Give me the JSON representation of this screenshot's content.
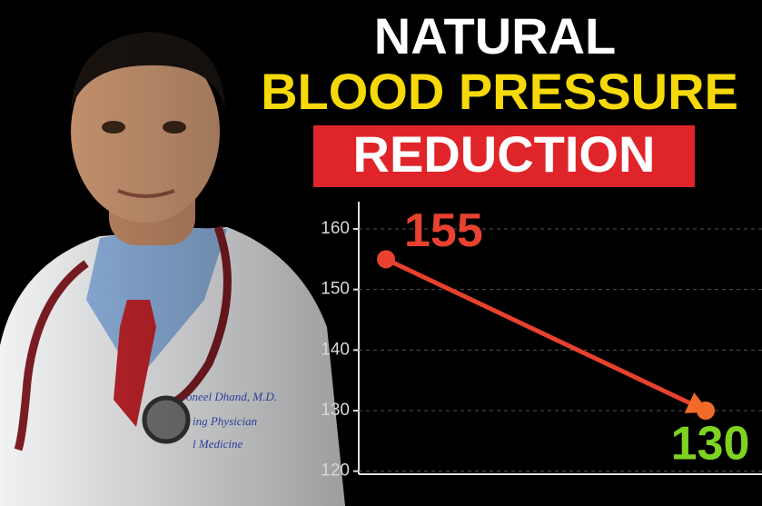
{
  "title_lines": [
    "NATURAL",
    "BLOOD PRESSURE",
    "REDUCTION"
  ],
  "photo": {
    "coat_text": [
      "oneel Dhand, M.D.",
      "ing Physician",
      "l Medicine"
    ]
  },
  "chart_data": {
    "type": "line",
    "categories": [
      null,
      null
    ],
    "values": [
      155,
      130
    ],
    "line_color": "#e8412f",
    "point_colors": [
      "#e8412f",
      "#f26a2a"
    ],
    "label_colors": [
      "#e8412f",
      "#7ed321"
    ],
    "ylim": [
      119.5,
      164.5
    ],
    "yticks": [
      120,
      130,
      140,
      150,
      160
    ],
    "grid": true
  }
}
